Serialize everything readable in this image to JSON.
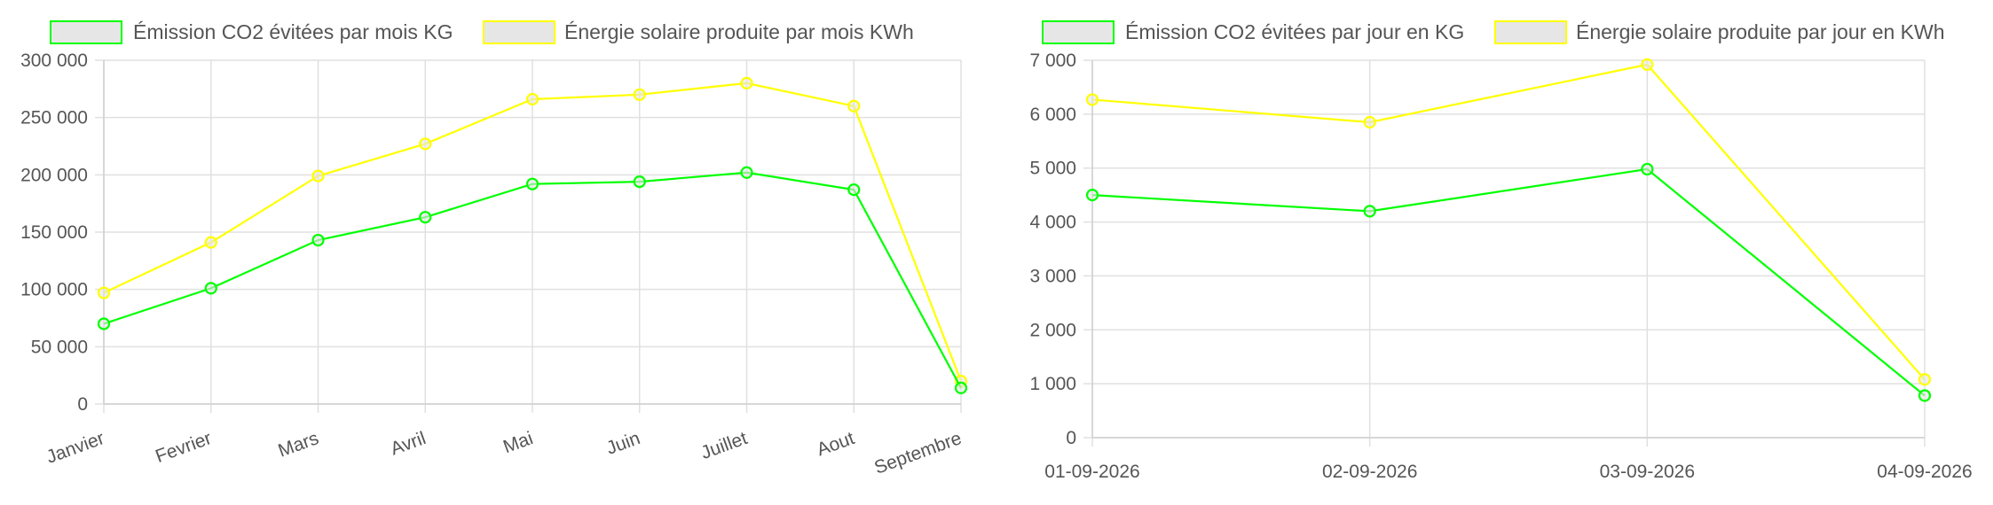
{
  "chart_data": [
    {
      "type": "line",
      "categories": [
        "Janvier",
        "Fevrier",
        "Mars",
        "Avril",
        "Mai",
        "Juin",
        "Juillet",
        "Aout",
        "Septembre"
      ],
      "series": [
        {
          "name": "Émission CO2 évitées par mois KG",
          "color": "#00ff00",
          "values": [
            70000,
            101000,
            143000,
            163000,
            192000,
            194000,
            202000,
            187000,
            14000
          ]
        },
        {
          "name": "Énergie solaire produite par mois KWh",
          "color": "#ffff00",
          "values": [
            97000,
            141000,
            199000,
            227000,
            266000,
            270000,
            280000,
            260000,
            20000
          ]
        }
      ],
      "ylim": [
        0,
        300000
      ],
      "yticks": [
        "0",
        "50 000",
        "100 000",
        "150 000",
        "200 000",
        "250 000",
        "300 000"
      ],
      "grid": true,
      "legend": "top",
      "x_label_rotation": -20
    },
    {
      "type": "line",
      "categories": [
        "01-09-2026",
        "02-09-2026",
        "03-09-2026",
        "04-09-2026"
      ],
      "series": [
        {
          "name": "Émission CO2 évitées par jour en KG",
          "color": "#00ff00",
          "values": [
            4500,
            4200,
            4980,
            780
          ]
        },
        {
          "name": "Énergie solaire produite par jour en KWh",
          "color": "#ffff00",
          "values": [
            6270,
            5850,
            6920,
            1080
          ]
        }
      ],
      "ylim": [
        0,
        7000
      ],
      "yticks": [
        "0",
        "1 000",
        "2 000",
        "3 000",
        "4 000",
        "5 000",
        "6 000",
        "7 000"
      ],
      "grid": true,
      "legend": "top",
      "x_label_rotation": 0
    }
  ]
}
